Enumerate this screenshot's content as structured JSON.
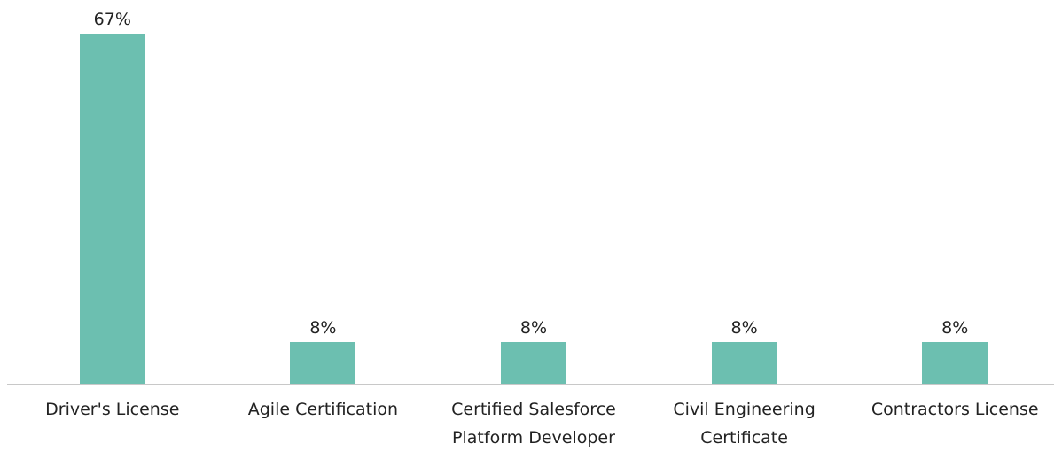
{
  "chart_data": {
    "type": "bar",
    "categories": [
      "Driver's License",
      "Agile Certification",
      "Certified Salesforce Platform Developer",
      "Civil Engineering Certificate",
      "Contractors License"
    ],
    "values": [
      67,
      8,
      8,
      8,
      8
    ],
    "value_labels": [
      "67%",
      "8%",
      "8%",
      "8%",
      "8%"
    ],
    "color": "#6cbfb0"
  }
}
